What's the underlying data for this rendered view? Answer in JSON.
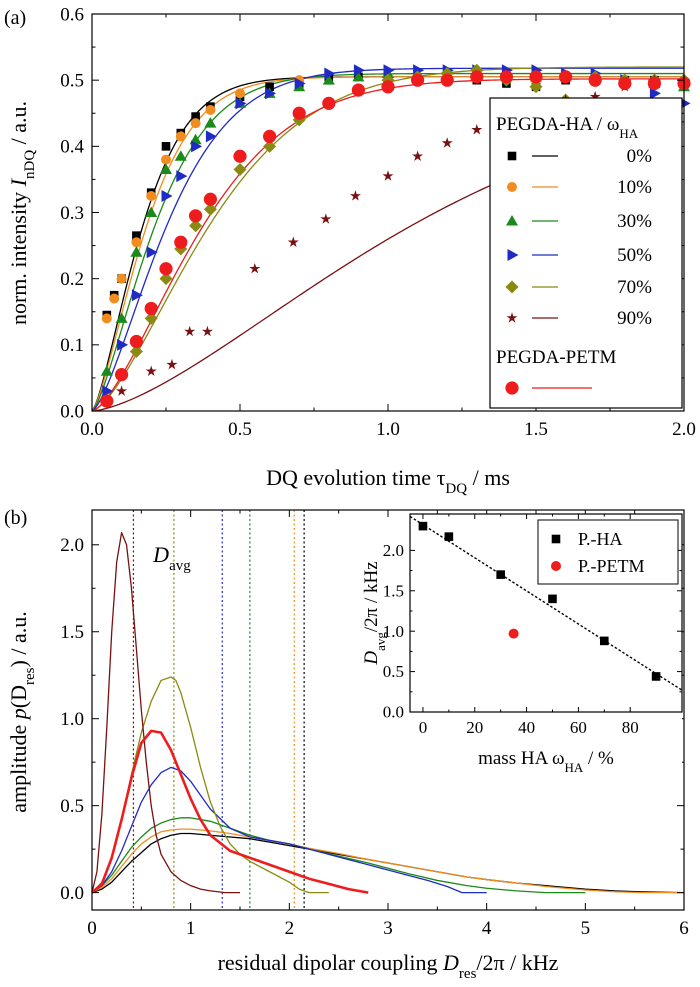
{
  "figure": {
    "panel_a_letter": "(a)",
    "panel_b_letter": "(b)"
  },
  "chart_data": [
    {
      "id": "a",
      "type": "scatter",
      "title": "",
      "xlabel": {
        "main": "DQ evolution time τ",
        "sub": "DQ",
        "unit": "  /  ms"
      },
      "ylabel": {
        "main": "norm. intensity ",
        "italic": "I",
        "sub": "nDQ",
        "unit": "  /  a.u."
      },
      "xlim": [
        0,
        2.0
      ],
      "ylim": [
        0,
        0.6
      ],
      "xticks": [
        0.0,
        0.5,
        1.0,
        1.5,
        2.0
      ],
      "xtick_labels": [
        "0.0",
        "0.5",
        "1.0",
        "1.5",
        "2.0"
      ],
      "yticks": [
        0.0,
        0.1,
        0.2,
        0.3,
        0.4,
        0.5,
        0.6
      ],
      "ytick_labels": [
        "0.0",
        "0.1",
        "0.2",
        "0.3",
        "0.4",
        "0.5",
        "0.6"
      ],
      "legend": {
        "placement": "right",
        "title1": "PEGDA-HA / ω",
        "title1_sub": "HA",
        "title2": "PEGDA-PETM"
      },
      "series": [
        {
          "name": "0%",
          "color": "#000000",
          "marker": "square",
          "curve": {
            "a": 0.505,
            "tau": 0.2,
            "p": 1.4
          },
          "x": [
            0.05,
            0.075,
            0.1,
            0.15,
            0.2,
            0.25,
            0.3,
            0.35,
            0.4,
            0.5,
            0.6,
            0.7,
            0.8,
            0.9,
            1.0,
            1.1,
            1.2,
            1.3,
            1.4,
            1.5,
            1.6,
            1.7,
            1.8,
            1.9,
            2.0
          ],
          "y": [
            0.145,
            0.175,
            0.2,
            0.265,
            0.33,
            0.4,
            0.42,
            0.445,
            0.46,
            0.475,
            0.49,
            0.495,
            0.505,
            0.505,
            0.5,
            0.5,
            0.5,
            0.5,
            0.495,
            0.49,
            0.5,
            0.5,
            0.5,
            0.5,
            0.495
          ]
        },
        {
          "name": "10%",
          "color": "#f28c1e",
          "marker": "circle",
          "curve": {
            "a": 0.505,
            "tau": 0.215,
            "p": 1.4
          },
          "x": [
            0.05,
            0.075,
            0.1,
            0.15,
            0.2,
            0.25,
            0.3,
            0.35,
            0.4,
            0.5,
            0.7,
            1.5
          ],
          "y": [
            0.14,
            0.17,
            0.2,
            0.255,
            0.325,
            0.38,
            0.415,
            0.435,
            0.455,
            0.48,
            0.5,
            0.5
          ]
        },
        {
          "name": "30%",
          "color": "#1a8a1a",
          "marker": "triangle-up",
          "curve": {
            "a": 0.51,
            "tau": 0.25,
            "p": 1.4
          },
          "x": [
            0.05,
            0.1,
            0.15,
            0.2,
            0.25,
            0.3,
            0.35,
            0.4,
            0.5,
            0.6,
            0.7,
            0.8,
            0.9,
            1.0,
            1.1,
            1.2,
            1.3,
            1.4,
            1.5,
            1.6,
            1.7,
            1.8,
            1.9,
            2.0
          ],
          "y": [
            0.06,
            0.14,
            0.24,
            0.3,
            0.365,
            0.385,
            0.41,
            0.435,
            0.465,
            0.48,
            0.49,
            0.5,
            0.505,
            0.51,
            0.51,
            0.51,
            0.51,
            0.51,
            0.505,
            0.505,
            0.505,
            0.5,
            0.495,
            0.49
          ]
        },
        {
          "name": "50%",
          "color": "#1f2bc4",
          "marker": "triangle-right",
          "curve": {
            "a": 0.518,
            "tau": 0.3,
            "p": 1.45
          },
          "x": [
            0.05,
            0.1,
            0.15,
            0.2,
            0.25,
            0.3,
            0.35,
            0.4,
            0.5,
            0.6,
            0.7,
            0.8,
            0.9,
            1.0,
            1.1,
            1.2,
            1.3,
            1.4,
            1.5,
            1.6,
            1.7,
            1.8,
            1.9,
            2.0
          ],
          "y": [
            0.03,
            0.1,
            0.175,
            0.24,
            0.325,
            0.355,
            0.4,
            0.415,
            0.465,
            0.48,
            0.495,
            0.51,
            0.515,
            0.515,
            0.515,
            0.515,
            0.515,
            0.515,
            0.515,
            0.51,
            0.51,
            0.5,
            0.48,
            0.465
          ]
        },
        {
          "name": "70%",
          "color": "#8a8a12",
          "marker": "diamond",
          "curve": {
            "a": 0.52,
            "tau": 0.47,
            "p": 1.5
          },
          "x": [
            0.15,
            0.2,
            0.25,
            0.3,
            0.35,
            0.4,
            0.5,
            0.6,
            0.7,
            0.8,
            0.9,
            1.0,
            1.1,
            1.2,
            1.3,
            1.4,
            1.5,
            1.6,
            1.7,
            1.8,
            1.9,
            2.0
          ],
          "y": [
            0.09,
            0.14,
            0.2,
            0.245,
            0.28,
            0.305,
            0.365,
            0.4,
            0.44,
            0.465,
            0.485,
            0.5,
            0.505,
            0.51,
            0.515,
            0.5,
            0.49,
            0.47,
            0.505,
            0.5,
            0.5,
            0.5
          ]
        },
        {
          "name": "90%",
          "color": "#7a1010",
          "marker": "star",
          "curve": {
            "a": 0.5,
            "tau": 1.23,
            "p": 1.5
          },
          "x": [
            0.1,
            0.2,
            0.27,
            0.33,
            0.39,
            0.55,
            0.68,
            0.79,
            0.89,
            1.0,
            1.1,
            1.2,
            1.3,
            1.4,
            1.5,
            1.6,
            1.7,
            1.8,
            1.9,
            2.0
          ],
          "y": [
            0.03,
            0.06,
            0.07,
            0.12,
            0.12,
            0.215,
            0.255,
            0.29,
            0.325,
            0.355,
            0.385,
            0.405,
            0.425,
            0.44,
            0.445,
            0.47,
            0.475,
            0.49,
            0.5,
            0.5
          ]
        },
        {
          "name": "PEGDA-PETM",
          "color": "#ee1c1c",
          "marker": "circle-large",
          "curve": {
            "a": 0.502,
            "tau": 0.43,
            "p": 1.5
          },
          "x": [
            0.05,
            0.1,
            0.15,
            0.2,
            0.25,
            0.3,
            0.35,
            0.4,
            0.5,
            0.6,
            0.7,
            0.8,
            0.9,
            1.0,
            1.1,
            1.2,
            1.3,
            1.4,
            1.5,
            1.6,
            1.7,
            1.8,
            1.9,
            2.0
          ],
          "y": [
            0.015,
            0.055,
            0.105,
            0.155,
            0.215,
            0.255,
            0.295,
            0.32,
            0.385,
            0.415,
            0.45,
            0.465,
            0.485,
            0.49,
            0.5,
            0.5,
            0.505,
            0.505,
            0.505,
            0.505,
            0.5,
            0.495,
            0.495,
            0.495
          ]
        }
      ]
    },
    {
      "id": "b",
      "type": "line",
      "title": "",
      "xlabel": {
        "main": "residual dipolar coupling ",
        "italic": "D",
        "sub": "res",
        "unit": "/2π  /  kHz"
      },
      "ylabel": {
        "main": "amplitude ",
        "italic": "p",
        "paren": "(D",
        "sub": "res",
        "unit": ")  /  a.u."
      },
      "xlim": [
        0,
        6
      ],
      "ylim": [
        -0.1,
        2.2
      ],
      "xticks": [
        0,
        1,
        2,
        3,
        4,
        5,
        6
      ],
      "xtick_labels": [
        "0",
        "1",
        "2",
        "3",
        "4",
        "5",
        "6"
      ],
      "yticks": [
        0.0,
        0.5,
        1.0,
        1.5,
        2.0
      ],
      "ytick_labels": [
        "0.0",
        "0.5",
        "1.0",
        "1.5",
        "2.0"
      ],
      "annotation": {
        "text": "D",
        "sub": "avg",
        "x": 0.62,
        "y": 1.9
      },
      "vlines": [
        {
          "x": 0.42,
          "color": "#7a1010"
        },
        {
          "x": 0.83,
          "color": "#8a8a12"
        },
        {
          "x": 1.32,
          "color": "#1f2bc4"
        },
        {
          "x": 1.6,
          "color": "#1a8a1a"
        },
        {
          "x": 2.05,
          "color": "#f28c1e"
        },
        {
          "x": 2.15,
          "color": "#000000"
        }
      ],
      "series": [
        {
          "name": "0%",
          "color": "#000000",
          "width": 1.3,
          "x": [
            0,
            0.1,
            0.2,
            0.3,
            0.4,
            0.5,
            0.6,
            0.7,
            0.8,
            0.9,
            1.0,
            1.2,
            1.4,
            1.6,
            1.8,
            2.0,
            2.2,
            2.5,
            2.8,
            3.0,
            3.2,
            3.5,
            3.8,
            4.0,
            4.3,
            4.6,
            5.0,
            5.3,
            5.6,
            6.0
          ],
          "y": [
            0.0,
            0.02,
            0.06,
            0.12,
            0.18,
            0.23,
            0.28,
            0.31,
            0.33,
            0.34,
            0.34,
            0.33,
            0.32,
            0.31,
            0.29,
            0.27,
            0.25,
            0.22,
            0.19,
            0.17,
            0.15,
            0.12,
            0.09,
            0.075,
            0.055,
            0.04,
            0.02,
            0.01,
            0.004,
            0.0
          ]
        },
        {
          "name": "10%",
          "color": "#f28c1e",
          "width": 1.3,
          "x": [
            0,
            0.1,
            0.2,
            0.3,
            0.4,
            0.5,
            0.6,
            0.7,
            0.8,
            0.9,
            1.0,
            1.2,
            1.4,
            1.6,
            1.8,
            2.0,
            2.2,
            2.5,
            2.8,
            3.0,
            3.2,
            3.5,
            3.8,
            4.0,
            4.3,
            4.6,
            5.0,
            5.3,
            5.6,
            6.0
          ],
          "y": [
            0.0,
            0.03,
            0.08,
            0.15,
            0.22,
            0.28,
            0.32,
            0.35,
            0.36,
            0.365,
            0.365,
            0.355,
            0.34,
            0.32,
            0.3,
            0.28,
            0.255,
            0.225,
            0.19,
            0.17,
            0.15,
            0.12,
            0.09,
            0.075,
            0.055,
            0.035,
            0.015,
            0.005,
            0.0,
            0.0
          ]
        },
        {
          "name": "30%",
          "color": "#1a8a1a",
          "width": 1.3,
          "x": [
            0,
            0.1,
            0.2,
            0.3,
            0.4,
            0.5,
            0.6,
            0.7,
            0.8,
            0.9,
            1.0,
            1.2,
            1.4,
            1.6,
            1.8,
            2.0,
            2.2,
            2.5,
            2.8,
            3.0,
            3.2,
            3.5,
            3.8,
            4.0,
            4.3,
            4.6,
            5.0
          ],
          "y": [
            0.0,
            0.04,
            0.1,
            0.18,
            0.26,
            0.32,
            0.37,
            0.4,
            0.42,
            0.43,
            0.43,
            0.41,
            0.37,
            0.33,
            0.3,
            0.28,
            0.25,
            0.21,
            0.17,
            0.14,
            0.11,
            0.07,
            0.04,
            0.025,
            0.01,
            0.0,
            0.0
          ]
        },
        {
          "name": "50%",
          "color": "#1f2bc4",
          "width": 1.3,
          "x": [
            0,
            0.1,
            0.2,
            0.3,
            0.4,
            0.5,
            0.6,
            0.7,
            0.8,
            0.9,
            1.0,
            1.1,
            1.2,
            1.4,
            1.6,
            1.8,
            2.0,
            2.2,
            2.4,
            2.6,
            2.8,
            3.0,
            3.2,
            3.4,
            3.6,
            3.75,
            4.0
          ],
          "y": [
            0.0,
            0.04,
            0.12,
            0.24,
            0.38,
            0.52,
            0.62,
            0.69,
            0.72,
            0.7,
            0.64,
            0.56,
            0.48,
            0.37,
            0.32,
            0.3,
            0.28,
            0.25,
            0.22,
            0.19,
            0.16,
            0.13,
            0.1,
            0.07,
            0.035,
            0.0,
            0.0
          ]
        },
        {
          "name": "70%",
          "color": "#8a8a12",
          "width": 1.3,
          "x": [
            0,
            0.1,
            0.2,
            0.3,
            0.4,
            0.5,
            0.6,
            0.7,
            0.8,
            0.85,
            0.9,
            1.0,
            1.1,
            1.2,
            1.3,
            1.4,
            1.5,
            1.6,
            1.8,
            2.0,
            2.1,
            2.2,
            2.4
          ],
          "y": [
            0.0,
            0.06,
            0.2,
            0.42,
            0.68,
            0.92,
            1.1,
            1.22,
            1.24,
            1.22,
            1.15,
            0.95,
            0.72,
            0.52,
            0.38,
            0.28,
            0.22,
            0.18,
            0.12,
            0.06,
            0.02,
            0.0,
            0.0
          ]
        },
        {
          "name": "90%",
          "color": "#7a1010",
          "width": 1.3,
          "x": [
            0,
            0.05,
            0.1,
            0.15,
            0.2,
            0.25,
            0.3,
            0.35,
            0.4,
            0.45,
            0.5,
            0.55,
            0.6,
            0.65,
            0.7,
            0.8,
            0.9,
            1.0,
            1.1,
            1.2,
            1.35,
            1.5
          ],
          "y": [
            0.0,
            0.12,
            0.45,
            0.95,
            1.5,
            1.9,
            2.07,
            2.0,
            1.75,
            1.4,
            1.05,
            0.75,
            0.5,
            0.33,
            0.22,
            0.12,
            0.07,
            0.04,
            0.02,
            0.01,
            0.0,
            0.0
          ]
        },
        {
          "name": "PEGDA-PETM",
          "color": "#ee1c1c",
          "width": 2.6,
          "x": [
            0,
            0.1,
            0.2,
            0.3,
            0.4,
            0.5,
            0.6,
            0.7,
            0.8,
            0.9,
            1.0,
            1.1,
            1.2,
            1.4,
            1.6,
            1.8,
            2.0,
            2.2,
            2.4,
            2.6,
            2.8
          ],
          "y": [
            0.0,
            0.05,
            0.2,
            0.42,
            0.66,
            0.86,
            0.93,
            0.92,
            0.82,
            0.68,
            0.54,
            0.42,
            0.33,
            0.24,
            0.2,
            0.16,
            0.12,
            0.08,
            0.05,
            0.02,
            0.0
          ]
        }
      ],
      "inset": {
        "type": "scatter",
        "xlabel": {
          "main": "mass HA ω",
          "sub": "HA",
          "unit": "  /  %"
        },
        "ylabel": {
          "main": "D",
          "sub": "avg",
          "unit": "/2π  /  kHz"
        },
        "xlim": [
          -5,
          100
        ],
        "ylim": [
          0,
          2.45
        ],
        "xticks": [
          0,
          20,
          40,
          60,
          80
        ],
        "xtick_labels": [
          "0",
          "20",
          "40",
          "60",
          "80"
        ],
        "yticks": [
          0.0,
          0.5,
          1.0,
          1.5,
          2.0
        ],
        "ytick_labels": [
          "0.0",
          "0.5",
          "1.0",
          "1.5",
          "2.0"
        ],
        "legend": {
          "placement": "top-right"
        },
        "series": [
          {
            "name": "P.-HA",
            "color": "#000000",
            "marker": "square",
            "x": [
              0,
              10,
              30,
              50,
              70,
              90
            ],
            "y": [
              2.3,
              2.17,
              1.7,
              1.4,
              0.88,
              0.44
            ]
          },
          {
            "name": "P.-PETM",
            "color": "#ee1c1c",
            "marker": "circle",
            "x": [
              35
            ],
            "y": [
              0.97
            ]
          }
        ],
        "fit_line": {
          "x": [
            -5,
            100
          ],
          "y": [
            2.42,
            0.27
          ]
        }
      }
    }
  ]
}
